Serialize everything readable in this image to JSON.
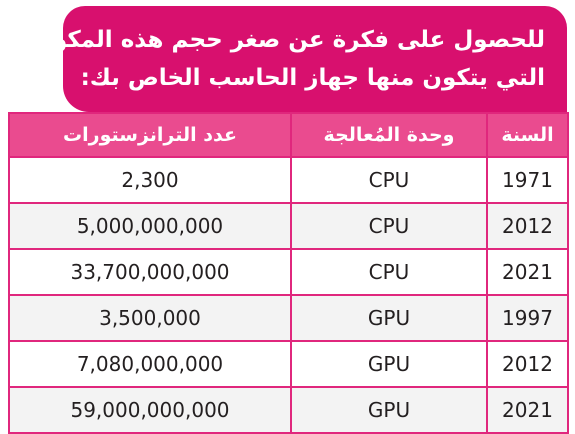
{
  "banner": {
    "line1": "للحصول على فكرة عن صغر حجم هذه المكونات",
    "line2": "التي يتكون منها جهاز الحاسب الخاص بك:"
  },
  "table": {
    "headers": {
      "year": "السنة",
      "unit": "وحدة المُعالجة",
      "count": "عدد الترانزستورات"
    },
    "rows": [
      {
        "year": "1971",
        "unit": "CPU",
        "count": "2,300"
      },
      {
        "year": "2012",
        "unit": "CPU",
        "count": "5,000,000,000"
      },
      {
        "year": "2021",
        "unit": "CPU",
        "count": "33,700,000,000"
      },
      {
        "year": "1997",
        "unit": "GPU",
        "count": "3,500,000"
      },
      {
        "year": "2012",
        "unit": "GPU",
        "count": "7,080,000,000"
      },
      {
        "year": "2021",
        "unit": "GPU",
        "count": "59,000,000,000"
      }
    ]
  },
  "colors": {
    "banner": "#d8106e",
    "header": "#ea4b8f",
    "border": "#e0277d",
    "stripe": "#f3f3f3"
  }
}
